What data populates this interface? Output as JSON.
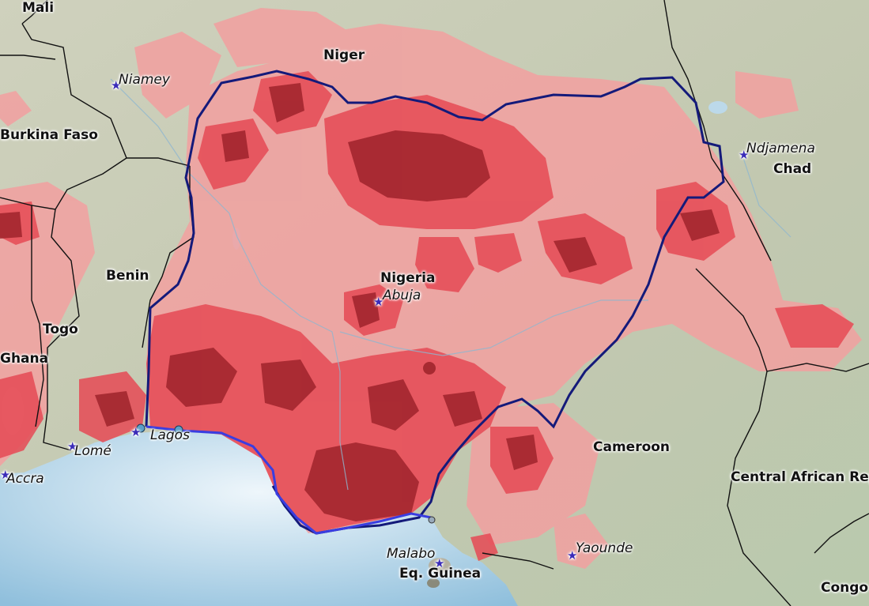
{
  "map": {
    "colors": {
      "land": "#c9cdb8",
      "water": "#bcd9ea",
      "country_border": "#111111",
      "nigeria_outline": "#141a7a",
      "coast_highlight": "#3a3de0",
      "choropleth_light": "#f2a0a0",
      "choropleth_mid": "#e64a55",
      "choropleth_dark": "#9b2028",
      "capital_marker": "#3a2bb8"
    },
    "labels": {
      "countries": [
        "Mali",
        "Niger",
        "Burkina Faso",
        "Benin",
        "Togo",
        "Ghana",
        "Nigeria",
        "Chad",
        "Cameroon",
        "Central African Rep",
        "Eq. Guinea",
        "Congo"
      ],
      "cities": [
        "Niamey",
        "Ndjamena",
        "Abuja",
        "Lagos",
        "Lomé",
        "Accra",
        "Malabo",
        "Yaounde"
      ]
    },
    "markers": [
      {
        "name": "Niamey",
        "icon": "star-icon"
      },
      {
        "name": "Ndjamena",
        "icon": "star-icon"
      },
      {
        "name": "Abuja",
        "icon": "star-icon"
      },
      {
        "name": "Lagos",
        "icon": "star-icon"
      },
      {
        "name": "Lomé",
        "icon": "star-icon"
      },
      {
        "name": "Accra",
        "icon": "star-icon"
      },
      {
        "name": "Malabo",
        "icon": "star-icon"
      },
      {
        "name": "Yaounde",
        "icon": "star-icon"
      }
    ]
  }
}
